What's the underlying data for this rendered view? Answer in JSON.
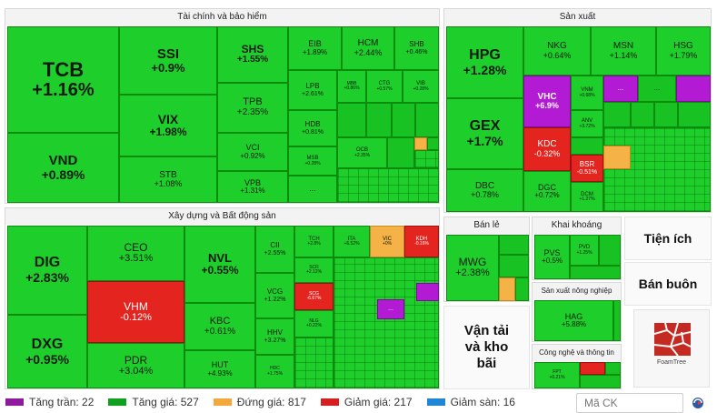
{
  "sectors": {
    "finance": "Tài chính và bảo hiểm",
    "production": "Sản xuất",
    "construction": "Xây dựng và Bất động sản",
    "retail": "Bán lẻ",
    "mining": "Khai khoáng",
    "utilities": "Tiện ích",
    "wholesale": "Bán buôn",
    "agriculture": "Sản xuất nông nghiệp",
    "transport": "Vận tải và kho bãi",
    "tech": "Công nghệ và thông tin"
  },
  "tiles": {
    "tcb": {
      "t": "TCB",
      "c": "+1.16%"
    },
    "vnd": {
      "t": "VND",
      "c": "+0.89%"
    },
    "ssi": {
      "t": "SSI",
      "c": "+0.9%"
    },
    "vix": {
      "t": "VIX",
      "c": "+1.98%"
    },
    "stb": {
      "t": "STB",
      "c": "+1.08%"
    },
    "shs": {
      "t": "SHS",
      "c": "+1.55%"
    },
    "tpb": {
      "t": "TPB",
      "c": "+2.35%"
    },
    "vci": {
      "t": "VCI",
      "c": "+0.92%"
    },
    "vpb": {
      "t": "VPB",
      "c": "+1.31%"
    },
    "eib": {
      "t": "EIB",
      "c": "+1.89%"
    },
    "hcm": {
      "t": "HCM",
      "c": "+2.44%"
    },
    "shb": {
      "t": "SHB",
      "c": "+0.46%"
    },
    "lpb": {
      "t": "LPB",
      "c": "+2.61%"
    },
    "mbb": {
      "t": "MBB",
      "c": "+0.86%"
    },
    "ctg": {
      "t": "CTG",
      "c": "+0.57%"
    },
    "vib": {
      "t": "VIB",
      "c": "+0.28%"
    },
    "hdb": {
      "t": "HDB",
      "c": "+0.81%"
    },
    "ocb": {
      "t": "OCB",
      "c": "+2.35%"
    },
    "msb": {
      "t": "MSB",
      "c": "+0.28%"
    },
    "hpg": {
      "t": "HPG",
      "c": "+1.28%"
    },
    "gex": {
      "t": "GEX",
      "c": "+1.7%"
    },
    "dbc": {
      "t": "DBC",
      "c": "+0.78%"
    },
    "nkg": {
      "t": "NKG",
      "c": "+0.64%"
    },
    "msn": {
      "t": "MSN",
      "c": "+1.14%"
    },
    "hsg": {
      "t": "HSG",
      "c": "+1.79%"
    },
    "vhc": {
      "t": "VHC",
      "c": "+6.9%"
    },
    "vnm": {
      "t": "VNM",
      "c": "+0.68%"
    },
    "anv": {
      "t": "ANV",
      "c": "+3.72%"
    },
    "kdc": {
      "t": "KDC",
      "c": "-0.32%"
    },
    "bsr": {
      "t": "BSR",
      "c": "-0.51%"
    },
    "dgc": {
      "t": "DGC",
      "c": "+0.72%"
    },
    "dcm": {
      "t": "DCM",
      "c": "+1.27%"
    },
    "dig": {
      "t": "DIG",
      "c": "+2.83%"
    },
    "dxg": {
      "t": "DXG",
      "c": "+0.95%"
    },
    "ceo": {
      "t": "CEO",
      "c": "+3.51%"
    },
    "vhm": {
      "t": "VHM",
      "c": "-0.12%"
    },
    "pdr": {
      "t": "PDR",
      "c": "+3.04%"
    },
    "nvl": {
      "t": "NVL",
      "c": "+0.55%"
    },
    "kbc": {
      "t": "KBC",
      "c": "+0.61%"
    },
    "hut": {
      "t": "HUT",
      "c": "+4.93%"
    },
    "cii": {
      "t": "CII",
      "c": "+2.55%"
    },
    "vcg": {
      "t": "VCG",
      "c": "+1.22%"
    },
    "hhv": {
      "t": "HHV",
      "c": "+3.27%"
    },
    "tch": {
      "t": "TCH",
      "c": "+2.8%"
    },
    "ita": {
      "t": "ITA",
      "c": "+6.52%"
    },
    "vic": {
      "t": "VIC",
      "c": "+0%"
    },
    "kdh": {
      "t": "KDH",
      "c": "-0.16%"
    },
    "scr": {
      "t": "SCR",
      "c": "+2.12%"
    },
    "scg": {
      "t": "SCG",
      "c": "-6.67%"
    },
    "nlg": {
      "t": "NLG",
      "c": "+0.22%"
    },
    "hdc": {
      "t": "HDC",
      "c": "+1.75%"
    },
    "mwg": {
      "t": "MWG",
      "c": "+2.38%"
    },
    "pvs": {
      "t": "PVS",
      "c": "+0.5%"
    },
    "pvd": {
      "t": "PVD",
      "c": "+1.25%"
    },
    "hag": {
      "t": "HAG",
      "c": "+5.88%"
    },
    "fpt": {
      "t": "FPT",
      "c": "+0.21%"
    }
  },
  "more": "...",
  "logo_text": "FoamTree",
  "legend": [
    {
      "label": "Tăng trần: 22",
      "color": "#8e1a9e"
    },
    {
      "label": "Tăng giá: 527",
      "color": "#0fa020"
    },
    {
      "label": "Đứng giá: 817",
      "color": "#f4a73b"
    },
    {
      "label": "Giảm giá: 217",
      "color": "#d71f1f"
    },
    {
      "label": "Giảm sàn: 16",
      "color": "#1f86d7"
    }
  ],
  "search": {
    "placeholder": "Mã CK"
  }
}
